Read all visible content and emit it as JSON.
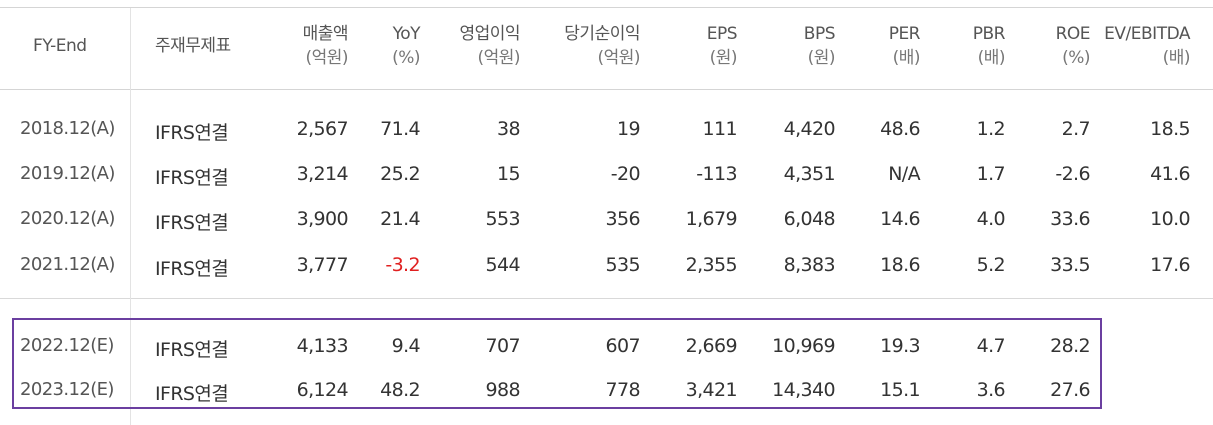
{
  "columns": [
    {
      "key": "fy",
      "title": "FY-End",
      "unit": ""
    },
    {
      "key": "basis",
      "title": "주재무제표",
      "unit": ""
    },
    {
      "key": "sales",
      "title": "매출액",
      "unit": "(억원)"
    },
    {
      "key": "yoy",
      "title": "YoY",
      "unit": "(%)"
    },
    {
      "key": "op",
      "title": "영업이익",
      "unit": "(억원)"
    },
    {
      "key": "net",
      "title": "당기순이익",
      "unit": "(억원)"
    },
    {
      "key": "eps",
      "title": "EPS",
      "unit": "(원)"
    },
    {
      "key": "bps",
      "title": "BPS",
      "unit": "(원)"
    },
    {
      "key": "per",
      "title": "PER",
      "unit": "(배)"
    },
    {
      "key": "pbr",
      "title": "PBR",
      "unit": "(배)"
    },
    {
      "key": "roe",
      "title": "ROE",
      "unit": "(%)"
    },
    {
      "key": "ev",
      "title": "EV/EBITDA",
      "unit": "(배)"
    }
  ],
  "actual_rows": [
    {
      "fy": "2018.12(A)",
      "basis": "IFRS연결",
      "sales": "2,567",
      "yoy": "71.4",
      "op": "38",
      "net": "19",
      "eps": "111",
      "bps": "4,420",
      "per": "48.6",
      "pbr": "1.2",
      "roe": "2.7",
      "ev": "18.5"
    },
    {
      "fy": "2019.12(A)",
      "basis": "IFRS연결",
      "sales": "3,214",
      "yoy": "25.2",
      "op": "15",
      "net": "-20",
      "eps": "-113",
      "bps": "4,351",
      "per": "N/A",
      "pbr": "1.7",
      "roe": "-2.6",
      "ev": "41.6"
    },
    {
      "fy": "2020.12(A)",
      "basis": "IFRS연결",
      "sales": "3,900",
      "yoy": "21.4",
      "op": "553",
      "net": "356",
      "eps": "1,679",
      "bps": "6,048",
      "per": "14.6",
      "pbr": "4.0",
      "roe": "33.6",
      "ev": "10.0"
    },
    {
      "fy": "2021.12(A)",
      "basis": "IFRS연결",
      "sales": "3,777",
      "yoy": "-3.2",
      "op": "544",
      "net": "535",
      "eps": "2,355",
      "bps": "8,383",
      "per": "18.6",
      "pbr": "5.2",
      "roe": "33.5",
      "ev": "17.6"
    }
  ],
  "estimate_rows": [
    {
      "fy": "2022.12(E)",
      "basis": "IFRS연결",
      "sales": "4,133",
      "yoy": "9.4",
      "op": "707",
      "net": "607",
      "eps": "2,669",
      "bps": "10,969",
      "per": "19.3",
      "pbr": "4.7",
      "roe": "28.2",
      "ev": ""
    },
    {
      "fy": "2023.12(E)",
      "basis": "IFRS연결",
      "sales": "6,124",
      "yoy": "48.2",
      "op": "988",
      "net": "778",
      "eps": "3,421",
      "bps": "14,340",
      "per": "15.1",
      "pbr": "3.6",
      "roe": "27.6",
      "ev": ""
    }
  ],
  "colors": {
    "negative_yoy": "#e02020",
    "highlight_border": "#6b3fa0"
  }
}
